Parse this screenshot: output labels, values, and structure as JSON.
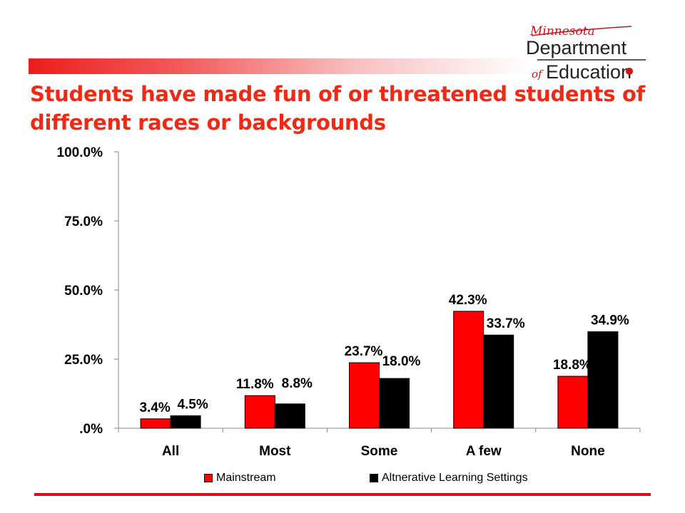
{
  "slide": {
    "title": "Students have made fun of or threatened students of different races or backgrounds",
    "accent_color": "#ee2a14",
    "bar_color": "#e3001b"
  },
  "logo": {
    "line1": "Minnesota",
    "line2": "Department",
    "line3_prefix": "of",
    "line3": "Education"
  },
  "chart_data": {
    "type": "bar",
    "categories": [
      "All",
      "Most",
      "Some",
      "A few",
      "None"
    ],
    "series": [
      {
        "name": "Mainstream",
        "color": "#ff0000",
        "values": [
          3.4,
          11.8,
          23.7,
          42.3,
          18.8
        ],
        "labels": [
          "3.4%",
          "11.8%",
          "23.7%",
          "42.3%",
          "18.8%"
        ]
      },
      {
        "name": "Altnerative Learning Settings",
        "color": "#000000",
        "values": [
          4.5,
          8.8,
          18.0,
          33.7,
          34.9
        ],
        "labels": [
          "4.5%",
          "8.8%",
          "18.0%",
          "33.7%",
          "34.9%"
        ]
      }
    ],
    "yticks": [
      0,
      25,
      50,
      75,
      100
    ],
    "ytick_labels": [
      ".0%",
      "25.0%",
      "50.0%",
      "75.0%",
      "100.0%"
    ],
    "ylim": [
      0,
      100
    ],
    "grid": false,
    "legend_position": "bottom",
    "title": "",
    "xlabel": "",
    "ylabel": ""
  }
}
